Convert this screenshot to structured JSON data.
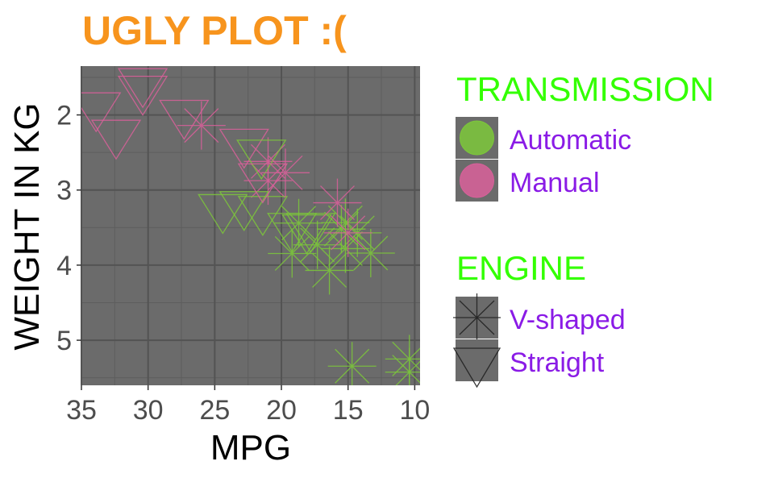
{
  "chart_data": {
    "type": "scatter",
    "title": "UGLY PLOT :(",
    "xlabel": "MPG",
    "ylabel": "WEIGHT IN KG",
    "x_reversed": true,
    "y_reversed": true,
    "xlim": [
      35,
      9.6
    ],
    "ylim": [
      5.6,
      1.35
    ],
    "x_ticks": [
      35,
      30,
      25,
      20,
      15,
      10
    ],
    "y_ticks": [
      2,
      3,
      4,
      5
    ],
    "grid": true,
    "legend_placement": "right",
    "legends": [
      {
        "title": "TRANSMISSION",
        "entries": [
          {
            "label": "Automatic",
            "color": "#7CC83A"
          },
          {
            "label": "Manual",
            "color": "#D9609A"
          }
        ]
      },
      {
        "title": "ENGINE",
        "entries": [
          {
            "label": "V-shaped",
            "shape": "star"
          },
          {
            "label": "Straight",
            "shape": "triangle-down"
          }
        ]
      }
    ],
    "colors": {
      "title": "#F7941D",
      "legend_title": "#33FF00",
      "legend_label": "#8A1BE6",
      "panel": "#6B6B6B",
      "automatic": "#7CC83A",
      "manual": "#D9609A"
    },
    "points": [
      {
        "mpg": 21.0,
        "wt": 2.62,
        "am": "Manual",
        "vs": "V-shaped"
      },
      {
        "mpg": 21.0,
        "wt": 2.875,
        "am": "Manual",
        "vs": "V-shaped"
      },
      {
        "mpg": 22.8,
        "wt": 2.32,
        "am": "Manual",
        "vs": "Straight"
      },
      {
        "mpg": 21.4,
        "wt": 3.215,
        "am": "Automatic",
        "vs": "Straight"
      },
      {
        "mpg": 18.7,
        "wt": 3.44,
        "am": "Automatic",
        "vs": "V-shaped"
      },
      {
        "mpg": 18.1,
        "wt": 3.46,
        "am": "Automatic",
        "vs": "Straight"
      },
      {
        "mpg": 14.3,
        "wt": 3.57,
        "am": "Automatic",
        "vs": "V-shaped"
      },
      {
        "mpg": 24.4,
        "wt": 3.19,
        "am": "Automatic",
        "vs": "Straight"
      },
      {
        "mpg": 22.8,
        "wt": 3.15,
        "am": "Automatic",
        "vs": "Straight"
      },
      {
        "mpg": 19.2,
        "wt": 3.44,
        "am": "Automatic",
        "vs": "Straight"
      },
      {
        "mpg": 17.8,
        "wt": 3.44,
        "am": "Automatic",
        "vs": "Straight"
      },
      {
        "mpg": 16.4,
        "wt": 4.07,
        "am": "Automatic",
        "vs": "V-shaped"
      },
      {
        "mpg": 17.3,
        "wt": 3.73,
        "am": "Automatic",
        "vs": "V-shaped"
      },
      {
        "mpg": 15.2,
        "wt": 3.78,
        "am": "Automatic",
        "vs": "V-shaped"
      },
      {
        "mpg": 10.4,
        "wt": 5.25,
        "am": "Automatic",
        "vs": "V-shaped"
      },
      {
        "mpg": 10.4,
        "wt": 5.424,
        "am": "Automatic",
        "vs": "V-shaped"
      },
      {
        "mpg": 14.7,
        "wt": 5.345,
        "am": "Automatic",
        "vs": "V-shaped"
      },
      {
        "mpg": 32.4,
        "wt": 2.2,
        "am": "Manual",
        "vs": "Straight"
      },
      {
        "mpg": 30.4,
        "wt": 1.615,
        "am": "Manual",
        "vs": "Straight"
      },
      {
        "mpg": 33.9,
        "wt": 1.835,
        "am": "Manual",
        "vs": "Straight"
      },
      {
        "mpg": 21.5,
        "wt": 2.465,
        "am": "Automatic",
        "vs": "Straight"
      },
      {
        "mpg": 15.5,
        "wt": 3.52,
        "am": "Automatic",
        "vs": "V-shaped"
      },
      {
        "mpg": 15.2,
        "wt": 3.435,
        "am": "Automatic",
        "vs": "V-shaped"
      },
      {
        "mpg": 13.3,
        "wt": 3.84,
        "am": "Automatic",
        "vs": "V-shaped"
      },
      {
        "mpg": 19.2,
        "wt": 3.845,
        "am": "Automatic",
        "vs": "V-shaped"
      },
      {
        "mpg": 27.3,
        "wt": 1.935,
        "am": "Manual",
        "vs": "Straight"
      },
      {
        "mpg": 26.0,
        "wt": 2.14,
        "am": "Manual",
        "vs": "V-shaped"
      },
      {
        "mpg": 30.4,
        "wt": 1.513,
        "am": "Manual",
        "vs": "Straight"
      },
      {
        "mpg": 15.8,
        "wt": 3.17,
        "am": "Manual",
        "vs": "V-shaped"
      },
      {
        "mpg": 19.7,
        "wt": 2.77,
        "am": "Manual",
        "vs": "V-shaped"
      },
      {
        "mpg": 15.0,
        "wt": 3.57,
        "am": "Manual",
        "vs": "V-shaped"
      },
      {
        "mpg": 21.4,
        "wt": 2.78,
        "am": "Manual",
        "vs": "Straight"
      }
    ]
  }
}
